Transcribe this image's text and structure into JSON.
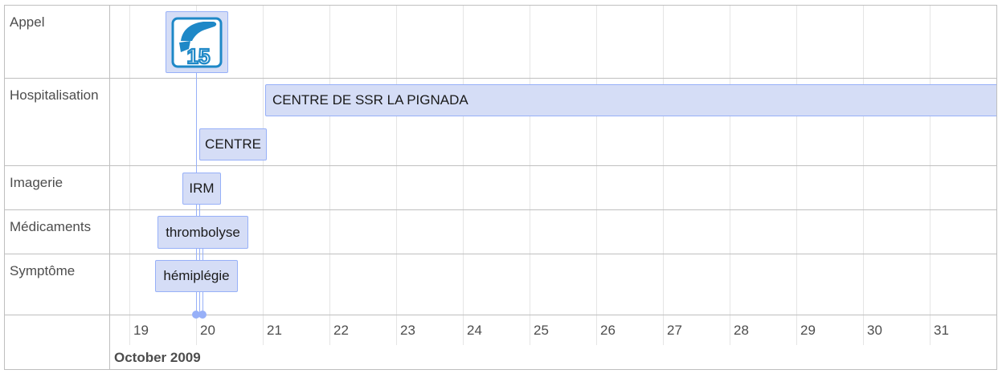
{
  "groups": {
    "appel": "Appel",
    "hospitalisation": "Hospitalisation",
    "imagerie": "Imagerie",
    "medicaments": "Médicaments",
    "symptome": "Symptôme"
  },
  "items": {
    "appel_icon": "15",
    "hosp_long": "CENTRE DE SSR LA PIGNADA",
    "hosp_short": "CENTRE",
    "irm": "IRM",
    "thrombolyse": "thrombolyse",
    "hemiplegie": "hémiplégie"
  },
  "axis": {
    "days": [
      "19",
      "20",
      "21",
      "22",
      "23",
      "24",
      "25",
      "26",
      "27",
      "28",
      "29",
      "30",
      "31"
    ],
    "month": "October 2009"
  },
  "colors": {
    "item_bg": "#d5ddf6",
    "item_border": "#97b0f8",
    "icon_blue": "#1e88c7"
  }
}
